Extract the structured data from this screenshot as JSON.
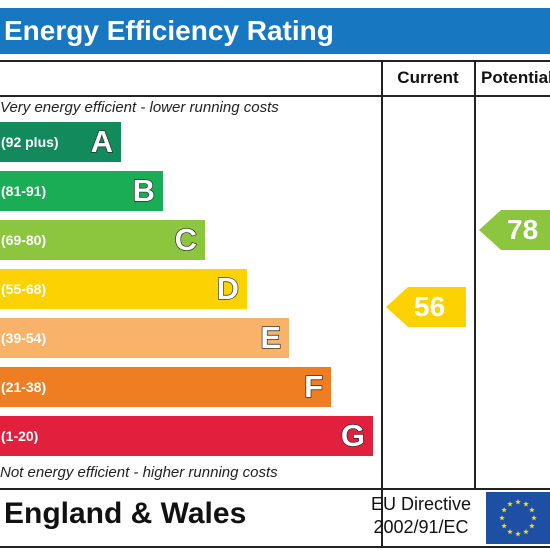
{
  "title": "Energy Efficiency Rating",
  "columns": {
    "current": "Current",
    "potential": "Potential"
  },
  "top_caption": "Very energy efficient - lower running costs",
  "bottom_caption": "Not energy efficient - higher running costs",
  "bands": [
    {
      "range": "(92 plus)",
      "letter": "A",
      "color": "#138a5c"
    },
    {
      "range": "(81-91)",
      "letter": "B",
      "color": "#1aad55"
    },
    {
      "range": "(69-80)",
      "letter": "C",
      "color": "#8cc63f"
    },
    {
      "range": "(55-68)",
      "letter": "D",
      "color": "#fdd202"
    },
    {
      "range": "(39-54)",
      "letter": "E",
      "color": "#f8b26a"
    },
    {
      "range": "(21-38)",
      "letter": "F",
      "color": "#ef7d22"
    },
    {
      "range": "(1-20)",
      "letter": "G",
      "color": "#e21f3c"
    }
  ],
  "ratings": {
    "current": {
      "value": "56",
      "band": "D",
      "color": "#fdd202"
    },
    "potential": {
      "value": "78",
      "band": "C",
      "color": "#8cc63f"
    }
  },
  "footer": {
    "region": "England & Wales",
    "directive_line1": "EU Directive",
    "directive_line2": "2002/91/EC",
    "flag_color": "#1d4fa5",
    "star_color": "#ffdd00"
  }
}
